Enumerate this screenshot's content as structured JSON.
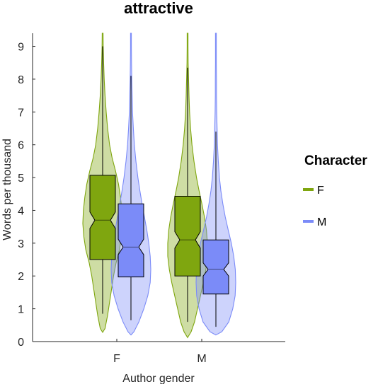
{
  "chart_data": {
    "type": "violin",
    "title": "attractive",
    "xlabel": "Author gender",
    "ylabel": "Words per thousand",
    "ylim": [
      0,
      9.4
    ],
    "yticks": [
      "0",
      "1",
      "2",
      "3",
      "4",
      "5",
      "6",
      "7",
      "8",
      "9"
    ],
    "categories": [
      "F",
      "M"
    ],
    "legend": {
      "title": "Character",
      "placement": "right",
      "entries": [
        "F",
        "M"
      ]
    },
    "series": [
      {
        "name": "F",
        "color": "#7fa60f",
        "groups": [
          {
            "category": "F",
            "min": 0.85,
            "q1": 2.5,
            "median": 3.7,
            "q3": 5.07,
            "max": 9.0,
            "notch_low": 3.45,
            "notch_high": 3.95,
            "density": [
              [
                0.28,
                0.0
              ],
              [
                0.4,
                0.12
              ],
              [
                0.8,
                0.25
              ],
              [
                1.2,
                0.35
              ],
              [
                1.6,
                0.45
              ],
              [
                2.0,
                0.55
              ],
              [
                2.4,
                0.68
              ],
              [
                2.8,
                0.85
              ],
              [
                3.2,
                0.95
              ],
              [
                3.6,
                1.0
              ],
              [
                4.0,
                0.97
              ],
              [
                4.4,
                0.9
              ],
              [
                4.8,
                0.8
              ],
              [
                5.2,
                0.65
              ],
              [
                5.6,
                0.48
              ],
              [
                6.0,
                0.35
              ],
              [
                6.5,
                0.25
              ],
              [
                7.0,
                0.18
              ],
              [
                7.5,
                0.12
              ],
              [
                8.0,
                0.08
              ],
              [
                8.5,
                0.05
              ],
              [
                9.0,
                0.03
              ],
              [
                9.4,
                0.02
              ]
            ]
          },
          {
            "category": "M",
            "min": 0.6,
            "q1": 2.0,
            "median": 3.1,
            "q3": 4.43,
            "max": 8.35,
            "notch_low": 2.85,
            "notch_high": 3.35,
            "density": [
              [
                0.12,
                0.0
              ],
              [
                0.3,
                0.18
              ],
              [
                0.6,
                0.35
              ],
              [
                1.0,
                0.5
              ],
              [
                1.4,
                0.65
              ],
              [
                1.8,
                0.8
              ],
              [
                2.2,
                0.92
              ],
              [
                2.6,
                1.0
              ],
              [
                3.0,
                1.0
              ],
              [
                3.4,
                0.95
              ],
              [
                3.8,
                0.85
              ],
              [
                4.2,
                0.72
              ],
              [
                4.6,
                0.58
              ],
              [
                5.0,
                0.45
              ],
              [
                5.5,
                0.32
              ],
              [
                6.0,
                0.22
              ],
              [
                6.5,
                0.15
              ],
              [
                7.0,
                0.1
              ],
              [
                7.5,
                0.07
              ],
              [
                8.0,
                0.05
              ],
              [
                8.5,
                0.03
              ],
              [
                9.0,
                0.02
              ],
              [
                9.4,
                0.02
              ]
            ]
          }
        ]
      },
      {
        "name": "M",
        "color": "#7b8bf8",
        "groups": [
          {
            "category": "F",
            "min": 0.65,
            "q1": 1.97,
            "median": 2.88,
            "q3": 4.2,
            "max": 8.1,
            "notch_low": 2.65,
            "notch_high": 3.12,
            "density": [
              [
                0.2,
                0.0
              ],
              [
                0.3,
                0.15
              ],
              [
                0.6,
                0.4
              ],
              [
                1.0,
                0.65
              ],
              [
                1.4,
                0.85
              ],
              [
                1.8,
                0.97
              ],
              [
                2.2,
                1.0
              ],
              [
                2.6,
                0.97
              ],
              [
                3.0,
                0.9
              ],
              [
                3.4,
                0.8
              ],
              [
                3.8,
                0.68
              ],
              [
                4.2,
                0.56
              ],
              [
                4.6,
                0.45
              ],
              [
                5.0,
                0.35
              ],
              [
                5.5,
                0.25
              ],
              [
                6.0,
                0.17
              ],
              [
                6.5,
                0.12
              ],
              [
                7.0,
                0.08
              ],
              [
                7.5,
                0.06
              ],
              [
                8.0,
                0.04
              ],
              [
                8.5,
                0.03
              ],
              [
                9.0,
                0.02
              ],
              [
                9.4,
                0.02
              ]
            ]
          },
          {
            "category": "M",
            "min": 0.45,
            "q1": 1.45,
            "median": 2.2,
            "q3": 3.1,
            "max": 6.4,
            "notch_low": 2.0,
            "notch_high": 2.4,
            "density": [
              [
                0.2,
                0.0
              ],
              [
                0.3,
                0.3
              ],
              [
                0.6,
                0.65
              ],
              [
                1.0,
                0.85
              ],
              [
                1.4,
                0.97
              ],
              [
                1.8,
                1.0
              ],
              [
                2.2,
                0.98
              ],
              [
                2.6,
                0.9
              ],
              [
                3.0,
                0.78
              ],
              [
                3.4,
                0.62
              ],
              [
                3.8,
                0.47
              ],
              [
                4.2,
                0.35
              ],
              [
                4.6,
                0.25
              ],
              [
                5.0,
                0.18
              ],
              [
                5.5,
                0.12
              ],
              [
                6.0,
                0.08
              ],
              [
                6.5,
                0.06
              ],
              [
                7.0,
                0.04
              ],
              [
                7.5,
                0.03
              ],
              [
                8.0,
                0.03
              ],
              [
                8.5,
                0.02
              ],
              [
                9.0,
                0.02
              ],
              [
                9.4,
                0.02
              ]
            ]
          }
        ]
      }
    ]
  }
}
